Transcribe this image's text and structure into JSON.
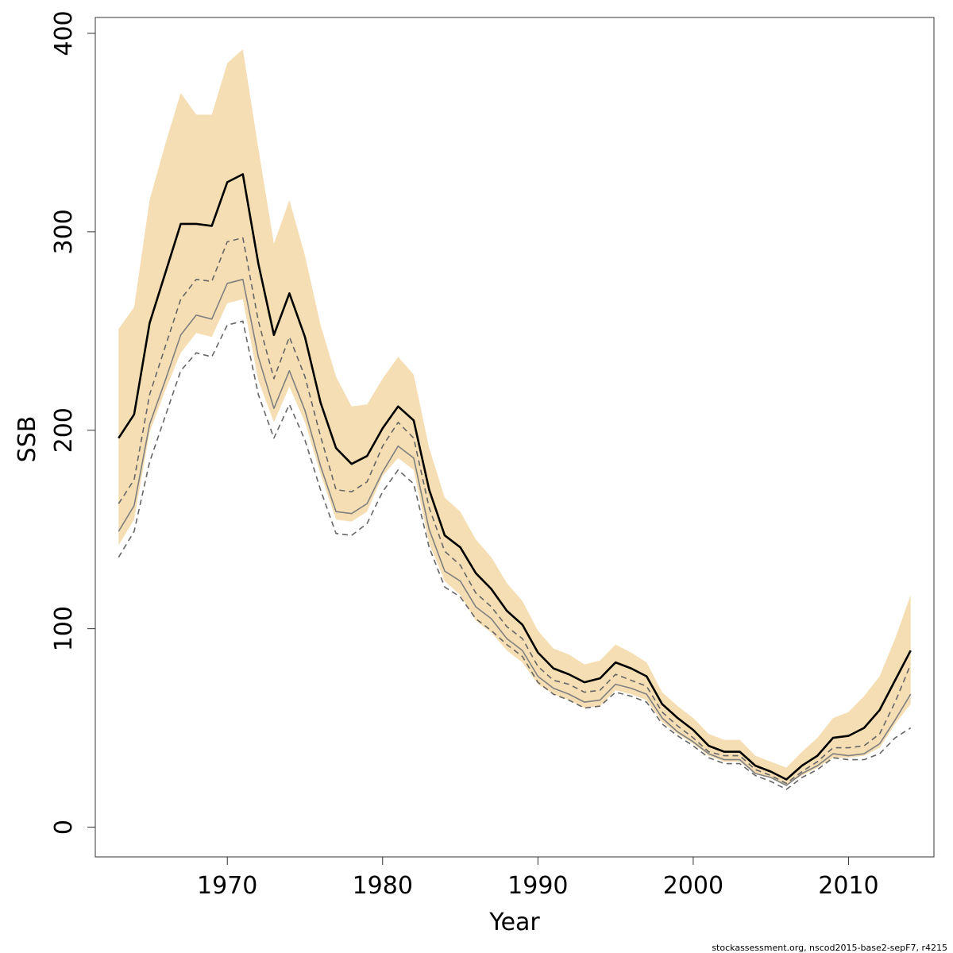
{
  "chart_data": {
    "type": "line",
    "title": "",
    "xlabel": "Year",
    "ylabel": "SSB",
    "xlim": [
      1961.5,
      2015.5
    ],
    "ylim": [
      -15,
      408
    ],
    "x_ticks": [
      "1970",
      "1980",
      "1990",
      "2000",
      "2010"
    ],
    "y_ticks": [
      "0",
      "100",
      "200",
      "300",
      "400"
    ],
    "grid": false,
    "legend": "none",
    "x": [
      1963,
      1964,
      1965,
      1966,
      1967,
      1968,
      1969,
      1970,
      1971,
      1972,
      1973,
      1974,
      1975,
      1976,
      1977,
      1978,
      1979,
      1980,
      1981,
      1982,
      1983,
      1984,
      1985,
      1986,
      1987,
      1988,
      1989,
      1990,
      1991,
      1992,
      1993,
      1994,
      1995,
      1996,
      1997,
      1998,
      1999,
      2000,
      2001,
      2002,
      2003,
      2004,
      2005,
      2006,
      2007,
      2008,
      2009,
      2010,
      2011,
      2012,
      2013,
      2014
    ],
    "band": {
      "name": "confidence band",
      "color": "#f5deb3",
      "upper": [
        251,
        262,
        316,
        344,
        370,
        359,
        359,
        385,
        392,
        342,
        294,
        316,
        288,
        253,
        227,
        212,
        213,
        226,
        237,
        228,
        191,
        166,
        159,
        145,
        136,
        123,
        114,
        99,
        90,
        87,
        82,
        84,
        92,
        88,
        83,
        68,
        61,
        55,
        47,
        44,
        44,
        36,
        33,
        30,
        38,
        45,
        55,
        58,
        66,
        76,
        95,
        117
      ],
      "lower": [
        142,
        155,
        199,
        220,
        239,
        249,
        247,
        264,
        266,
        225,
        204,
        222,
        204,
        178,
        155,
        154,
        159,
        177,
        186,
        180,
        143,
        124,
        117,
        104,
        98,
        89,
        83,
        72,
        67,
        64,
        60,
        61,
        69,
        67,
        64,
        53,
        47,
        42,
        36,
        33,
        33,
        27,
        25,
        21,
        26,
        30,
        35,
        35,
        36,
        40,
        52,
        62
      ]
    },
    "series": [
      {
        "name": "estimate",
        "color": "#000000",
        "style": "solid",
        "values": [
          196,
          208,
          254,
          279,
          304,
          304,
          303,
          325,
          329,
          284,
          248,
          269,
          247,
          214,
          191,
          183,
          187,
          201,
          212,
          205,
          170,
          147,
          141,
          128,
          120,
          109,
          102,
          88,
          80,
          77,
          73,
          75,
          83,
          80,
          76,
          62,
          55,
          49,
          41,
          38,
          38,
          31,
          28,
          24,
          31,
          36,
          45,
          46,
          50,
          59,
          74,
          89
        ]
      },
      {
        "name": "upper dashed",
        "color": "#666666",
        "style": "dashed",
        "values": [
          163,
          175,
          218,
          242,
          266,
          276,
          275,
          295,
          297,
          255,
          226,
          247,
          227,
          197,
          170,
          169,
          174,
          192,
          204,
          196,
          161,
          139,
          132,
          118,
          111,
          101,
          95,
          81,
          74,
          72,
          68,
          69,
          77,
          74,
          71,
          58,
          51,
          45,
          38,
          36,
          36,
          29,
          26,
          22,
          28,
          33,
          40,
          40,
          41,
          47,
          63,
          82
        ]
      },
      {
        "name": "grey line",
        "color": "#808080",
        "style": "solid",
        "values": [
          149,
          162,
          203,
          225,
          248,
          258,
          256,
          274,
          276,
          237,
          211,
          230,
          210,
          182,
          159,
          158,
          163,
          179,
          192,
          186,
          150,
          129,
          124,
          111,
          105,
          95,
          89,
          76,
          70,
          67,
          63,
          64,
          72,
          70,
          67,
          55,
          48,
          43,
          37,
          34,
          34,
          27,
          25,
          21,
          27,
          31,
          37,
          36,
          37,
          42,
          54,
          67
        ]
      },
      {
        "name": "lower dashed",
        "color": "#666666",
        "style": "dashed",
        "values": [
          136,
          149,
          184,
          207,
          230,
          239,
          237,
          253,
          255,
          218,
          196,
          213,
          195,
          170,
          148,
          147,
          153,
          169,
          180,
          173,
          141,
          121,
          116,
          105,
          99,
          92,
          86,
          73,
          67,
          64,
          60,
          61,
          68,
          66,
          63,
          52,
          46,
          41,
          35,
          32,
          32,
          26,
          23,
          19,
          25,
          29,
          35,
          34,
          34,
          37,
          45,
          50
        ]
      }
    ]
  },
  "footnote": "stockassessment.org, nscod2015-base2-sepF7, r4215"
}
